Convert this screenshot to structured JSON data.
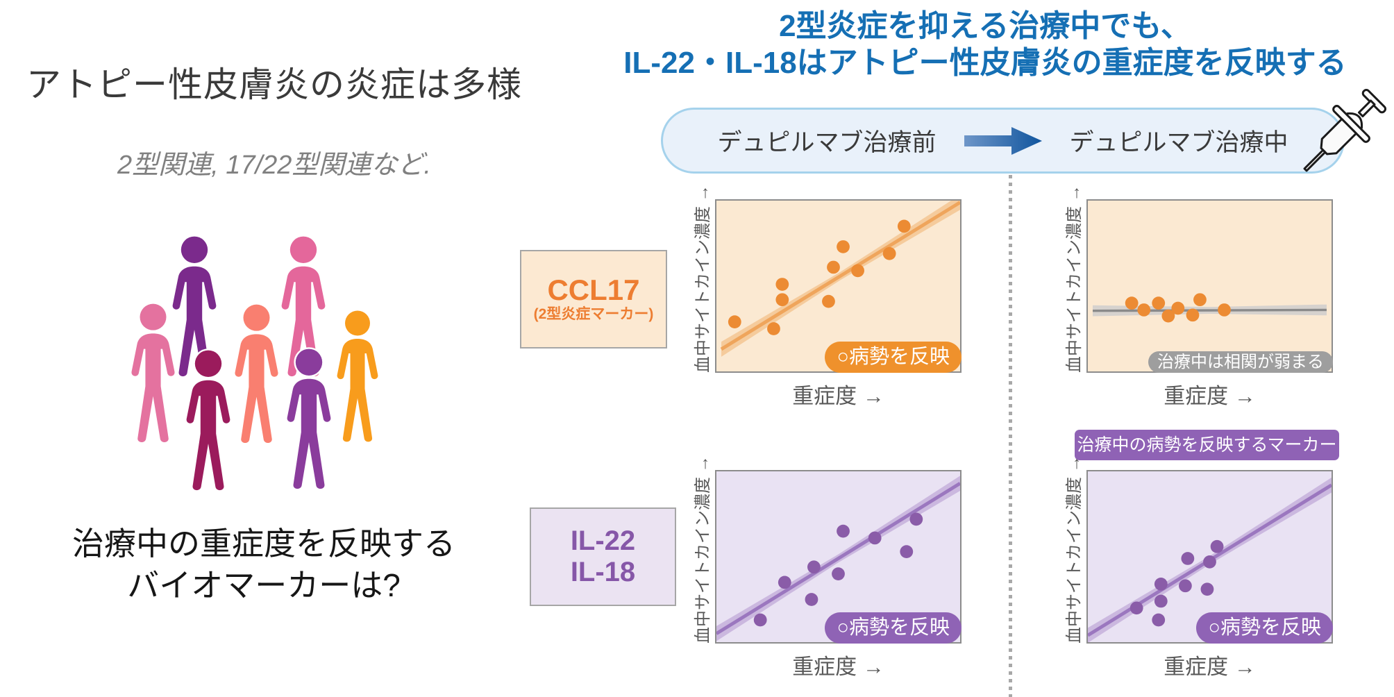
{
  "left_panel": {
    "title": "アトピー性皮膚炎の炎症は多様",
    "subtitle": "2型関連, 17/22型関連など.",
    "question_line1": "治療中の重症度を反映する",
    "question_line2": "バイオマーカーは?",
    "people_colors": [
      "#7B2A8C",
      "#E4679B",
      "#E4729F",
      "#F97F70",
      "#F89C1C",
      "#9B1B5C",
      "#8A3C9C"
    ]
  },
  "right_panel": {
    "title_line1": "2型炎症を抑える治療中でも、",
    "title_line2": "IL-22・IL-18はアトピー性皮膚炎の重症度を反映する",
    "title_color": "#156FB4",
    "treatment_box": {
      "before": "デュピルマブ治療前",
      "during": "デュピルマブ治療中",
      "bg": "#E9F1FA",
      "border": "#A5D2EC",
      "arrow_color_start": "#6E96C8",
      "arrow_color_end": "#10559E"
    },
    "row_labels": [
      {
        "line1": "CCL17",
        "line2": "(2型炎症マーカー)",
        "color": "#ED7D31",
        "bg": "#FCE9D2",
        "border": "#A6A6A6"
      },
      {
        "line1": "IL-22",
        "line2": "IL-18",
        "color": "#8657A8",
        "bg": "#EBE3F2",
        "border": "#A6A6A6"
      }
    ],
    "annotation_badge": {
      "label": "治療中の病勢を反映するマーカー",
      "bg": "#8F62B5",
      "fg": "#FFFFFF"
    }
  },
  "chart_data": [
    {
      "name": "CCL17 デュピルマブ治療前",
      "type": "scatter",
      "marker": "CCL17",
      "phase": "before",
      "xlabel": "重症度 →",
      "ylabel": "血中サイトカイン濃度 →",
      "x_range": [
        0,
        1
      ],
      "y_range": [
        0,
        1
      ],
      "bg": "#FBE9D2",
      "dot_color": "#EC8B33",
      "points": [
        [
          0.075,
          0.29
        ],
        [
          0.235,
          0.25
        ],
        [
          0.27,
          0.42
        ],
        [
          0.27,
          0.51
        ],
        [
          0.46,
          0.41
        ],
        [
          0.48,
          0.61
        ],
        [
          0.52,
          0.73
        ],
        [
          0.58,
          0.59
        ],
        [
          0.71,
          0.69
        ],
        [
          0.77,
          0.85
        ]
      ],
      "trend": {
        "x1": 0.02,
        "y1": 0.13,
        "x2": 1.0,
        "y2": 0.99,
        "color": "#EFA55C",
        "band": "#F5CB9C",
        "width": 5,
        "band_end": 11,
        "band_mid": 6
      },
      "badge": {
        "label": "○病勢を反映",
        "bg": "#EF912C",
        "fg": "#FFFFFF"
      }
    },
    {
      "name": "CCL17 デュピルマブ治療中",
      "type": "scatter",
      "marker": "CCL17",
      "phase": "during",
      "xlabel": "重症度 →",
      "ylabel": "血中サイトカイン濃度 →",
      "x_range": [
        0,
        1
      ],
      "y_range": [
        0,
        1
      ],
      "bg": "#FBE9D2",
      "dot_color": "#EC8B33",
      "points": [
        [
          0.18,
          0.4
        ],
        [
          0.23,
          0.36
        ],
        [
          0.29,
          0.4
        ],
        [
          0.33,
          0.325
        ],
        [
          0.37,
          0.37
        ],
        [
          0.43,
          0.33
        ],
        [
          0.46,
          0.42
        ],
        [
          0.56,
          0.36
        ]
      ],
      "trend": {
        "x1": 0.02,
        "y1": 0.355,
        "x2": 0.98,
        "y2": 0.36,
        "color": "#8A8A8A",
        "band": "#D6D2CE",
        "width": 3.5,
        "band_end": 8,
        "band_mid": 5
      },
      "badge": {
        "label": "治療中は相関が弱まる",
        "bg": "#9E9E9E",
        "fg": "#FFFFFF"
      }
    },
    {
      "name": "IL-22・IL-18 デュピルマブ治療前",
      "type": "scatter",
      "marker": "IL-22 / IL-18",
      "phase": "before",
      "xlabel": "重症度 →",
      "ylabel": "血中サイトカイン濃度 →",
      "x_range": [
        0,
        1
      ],
      "y_range": [
        0,
        1
      ],
      "bg": "#E9E2F3",
      "dot_color": "#8A5CA8",
      "points": [
        [
          0.18,
          0.13
        ],
        [
          0.28,
          0.35
        ],
        [
          0.39,
          0.25
        ],
        [
          0.4,
          0.44
        ],
        [
          0.5,
          0.4
        ],
        [
          0.52,
          0.65
        ],
        [
          0.65,
          0.61
        ],
        [
          0.78,
          0.53
        ],
        [
          0.82,
          0.72
        ]
      ],
      "trend": {
        "x1": 0.0,
        "y1": 0.05,
        "x2": 1.0,
        "y2": 0.93,
        "color": "#9B77BF",
        "band": "#CBB8DF",
        "width": 5,
        "band_end": 11,
        "band_mid": 6
      },
      "badge": {
        "label": "○病勢を反映",
        "bg": "#8F63B5",
        "fg": "#FFFFFF"
      }
    },
    {
      "name": "IL-22・IL-18 デュピルマブ治療中",
      "type": "scatter",
      "marker": "IL-22 / IL-18",
      "phase": "during",
      "xlabel": "重症度 →",
      "ylabel": "血中サイトカイン濃度 →",
      "x_range": [
        0,
        1
      ],
      "y_range": [
        0,
        1
      ],
      "bg": "#E9E2F3",
      "dot_color": "#8A5CA8",
      "points": [
        [
          0.2,
          0.2
        ],
        [
          0.29,
          0.13
        ],
        [
          0.3,
          0.24
        ],
        [
          0.3,
          0.34
        ],
        [
          0.4,
          0.33
        ],
        [
          0.41,
          0.49
        ],
        [
          0.49,
          0.31
        ],
        [
          0.5,
          0.47
        ],
        [
          0.53,
          0.56
        ]
      ],
      "trend": {
        "x1": 0.0,
        "y1": 0.04,
        "x2": 1.0,
        "y2": 0.92,
        "color": "#9B77BF",
        "band": "#CBB8DF",
        "width": 5,
        "band_end": 11,
        "band_mid": 6
      },
      "badge": {
        "label": "○病勢を反映",
        "bg": "#8F63B5",
        "fg": "#FFFFFF"
      }
    }
  ]
}
